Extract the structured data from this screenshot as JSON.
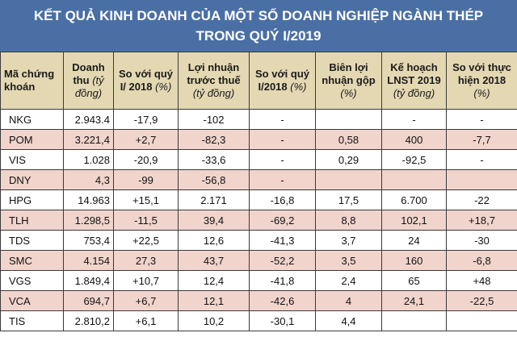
{
  "title_line1": "KẾT QUẢ KINH DOANH CỦA MỘT SỐ DOANH NGHIỆP NGÀNH THÉP",
  "title_line2": "TRONG QUÝ I/2019",
  "headers": [
    {
      "main": "Mã chứng khoán",
      "unit": ""
    },
    {
      "main": "Doanh thu",
      "unit": "(tỷ đồng)"
    },
    {
      "main": "So với quý I/ 2018",
      "unit": "(%)"
    },
    {
      "main": "Lợi nhuận trước thuế",
      "unit": "(tỷ đồng)"
    },
    {
      "main": "So với quý I/2018",
      "unit": "(%)"
    },
    {
      "main": "Biên lợi nhuận gộp",
      "unit": "(%)"
    },
    {
      "main": "Kế hoạch LNST 2019",
      "unit": "(tỷ đồng)"
    },
    {
      "main": "So với thực hiện 2018",
      "unit": "(%)"
    }
  ],
  "rows": [
    [
      "NKG",
      "2.943.4",
      "-17,9",
      "-102",
      "-",
      "",
      "-",
      "-"
    ],
    [
      "POM",
      "3.221,4",
      "+2,7",
      "-82,3",
      "-",
      "0,58",
      "400",
      "-7,7"
    ],
    [
      "VIS",
      "1.028",
      "-20,9",
      "-33,6",
      "-",
      "0,29",
      "-92,5",
      "-"
    ],
    [
      "DNY",
      "4,3",
      "-99",
      "-56,8",
      "-",
      "",
      "",
      ""
    ],
    [
      "HPG",
      "14.963",
      "+15,1",
      "2.171",
      "-16,8",
      "17,5",
      "6.700",
      "-22"
    ],
    [
      "TLH",
      "1.298,5",
      "-11,5",
      "39,4",
      "-69,2",
      "8,8",
      "102,1",
      "+18,7"
    ],
    [
      "TDS",
      "753,4",
      "+22,5",
      "12,6",
      "-41,3",
      "3,7",
      "24",
      "-30"
    ],
    [
      "SMC",
      "4.154",
      "27,3",
      "43,7",
      "-52,2",
      "3,5",
      "160",
      "-6,8"
    ],
    [
      "VGS",
      "1.849,4",
      "+10,7",
      "12,4",
      "-41,8",
      "2,4",
      "65",
      "+48"
    ],
    [
      "VCA",
      "694,7",
      "+6,7",
      "12,1",
      "-42,6",
      "4",
      "24,1",
      "-22,5"
    ],
    [
      "TIS",
      "2.810,2",
      "+6,1",
      "10,2",
      "-30,1",
      "4,4",
      "",
      ""
    ]
  ],
  "colors": {
    "title_bg": "#4a6fa5",
    "header_bg": "#e4d8b3",
    "row_alt_bg": "#f1d4cc"
  }
}
